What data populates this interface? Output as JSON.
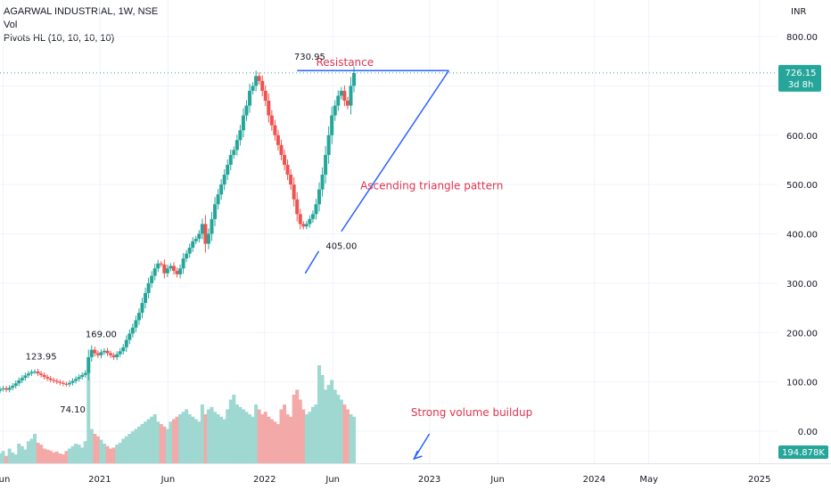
{
  "legend": {
    "symbol": "AGARWAL INDUSTRIAL, 1W, NSE",
    "vol": "Vol",
    "pivots": "Pivots HL (10, 10, 10, 10)"
  },
  "currency": "INR",
  "colors": {
    "up": "#26a69a",
    "down": "#ef5350",
    "vol_up": "#9fd7d1",
    "vol_down": "#f3a9a7",
    "drawing": "#2962ff",
    "annotation": "#e0344f",
    "grid": "#f0f3fa",
    "price_box": "#26a69a",
    "vol_box": "#26a69a"
  },
  "chart_data": {
    "type": "candlestick",
    "y_axis": {
      "ticks": [
        "800.00",
        "700.00",
        "600.00",
        "500.00",
        "400.00",
        "300.00",
        "200.00",
        "100.00",
        "0.00"
      ],
      "values": [
        800,
        700,
        600,
        500,
        400,
        300,
        200,
        100,
        0
      ],
      "ylim": [
        -60,
        840
      ]
    },
    "x_axis": {
      "ticks": [
        "Jun",
        "2021",
        "Jun",
        "2022",
        "Jun",
        "2023",
        "Jun",
        "2024",
        "May",
        "2025"
      ],
      "dates": [
        "2020-06-01",
        "2021-01-01",
        "2021-06-01",
        "2022-01-01",
        "2022-06-01",
        "2023-01-01",
        "2023-06-01",
        "2024-01-01",
        "2024-05-01",
        "2025-01-01"
      ],
      "xlim": [
        "2020-05-25",
        "2025-02-10"
      ]
    },
    "grid": true,
    "current_price": "726.15",
    "countdown": "3d 8h",
    "current_volume": "194.878K",
    "pivots": [
      {
        "label": "123.95",
        "date": "2020-08-24",
        "value": 123.95,
        "kind": "high"
      },
      {
        "label": "74.10",
        "date": "2020-11-02",
        "value": 74.1,
        "kind": "low"
      },
      {
        "label": "169.00",
        "date": "2021-01-04",
        "value": 169.0,
        "kind": "high"
      },
      {
        "label": "730.95",
        "date": "2022-04-11",
        "value": 730.95,
        "kind": "high"
      },
      {
        "label": "405.00",
        "date": "2022-06-20",
        "value": 405.0,
        "kind": "low"
      }
    ],
    "annotations": {
      "resistance": "Resistance",
      "triangle": "Ascending triangle pattern",
      "volume": "Strong volume buildup"
    },
    "weekly_closes": [
      85,
      87,
      84,
      88,
      92,
      97,
      103,
      108,
      113,
      117,
      120,
      121,
      117,
      114,
      110,
      107,
      104,
      102,
      100,
      98,
      96,
      95,
      98,
      102,
      106,
      110,
      114,
      118,
      150,
      165,
      158,
      154,
      160,
      163,
      158,
      154,
      150,
      156,
      162,
      170,
      185,
      198,
      210,
      225,
      240,
      260,
      280,
      300,
      315,
      330,
      340,
      338,
      320,
      330,
      335,
      325,
      318,
      330,
      350,
      360,
      372,
      385,
      390,
      400,
      420,
      380,
      400,
      430,
      460,
      480,
      500,
      520,
      540,
      560,
      570,
      590,
      610,
      640,
      660,
      690,
      700,
      720,
      710,
      690,
      670,
      640,
      620,
      600,
      580,
      560,
      540,
      520,
      500,
      470,
      440,
      420,
      415,
      420,
      430,
      440,
      460,
      490,
      520,
      560,
      600,
      640,
      660,
      680,
      690,
      670,
      660,
      700,
      726.15
    ],
    "volumes": [
      20,
      25,
      15,
      30,
      22,
      18,
      40,
      35,
      28,
      45,
      50,
      60,
      42,
      38,
      30,
      28,
      26,
      22,
      24,
      20,
      18,
      25,
      30,
      35,
      40,
      38,
      32,
      45,
      190,
      70,
      60,
      55,
      48,
      40,
      35,
      30,
      32,
      38,
      42,
      50,
      55,
      60,
      65,
      70,
      75,
      80,
      85,
      90,
      95,
      100,
      85,
      80,
      75,
      70,
      85,
      90,
      95,
      100,
      105,
      110,
      100,
      95,
      90,
      85,
      120,
      100,
      110,
      115,
      105,
      100,
      95,
      90,
      110,
      130,
      140,
      120,
      115,
      110,
      105,
      100,
      95,
      120,
      110,
      100,
      105,
      95,
      90,
      85,
      80,
      110,
      120,
      100,
      95,
      140,
      150,
      130,
      110,
      100,
      105,
      115,
      120,
      200,
      180,
      150,
      160,
      170,
      150,
      140,
      130,
      120,
      110,
      100,
      95
    ]
  }
}
